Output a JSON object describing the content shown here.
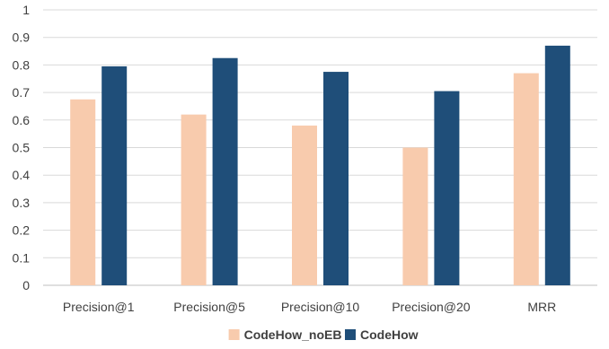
{
  "chart_data": {
    "type": "bar",
    "categories": [
      "Precision@1",
      "Precision@5",
      "Precision@10",
      "Precision@20",
      "MRR"
    ],
    "series": [
      {
        "name": "CodeHow_noEB",
        "values": [
          0.675,
          0.62,
          0.58,
          0.5,
          0.77
        ],
        "color": "#f8cbad"
      },
      {
        "name": "CodeHow",
        "values": [
          0.795,
          0.825,
          0.775,
          0.705,
          0.87
        ],
        "color": "#1f4e79"
      }
    ],
    "ylim": [
      0,
      1
    ],
    "yticks": [
      "0",
      "0.1",
      "0.2",
      "0.3",
      "0.4",
      "0.5",
      "0.6",
      "0.7",
      "0.8",
      "0.9",
      "1"
    ],
    "grid": true,
    "legend": "bottom-center",
    "title": "",
    "xlabel": "",
    "ylabel": ""
  }
}
